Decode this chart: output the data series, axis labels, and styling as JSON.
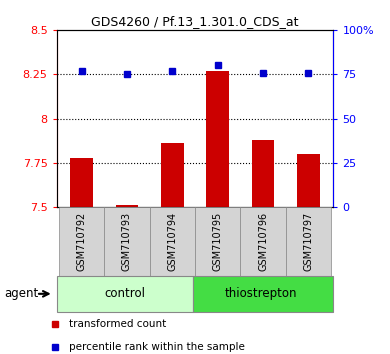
{
  "title": "GDS4260 / Pf.13_1.301.0_CDS_at",
  "samples": [
    "GSM710792",
    "GSM710793",
    "GSM710794",
    "GSM710795",
    "GSM710796",
    "GSM710797"
  ],
  "red_values": [
    7.78,
    7.51,
    7.86,
    8.27,
    7.88,
    7.8
  ],
  "blue_values": [
    77,
    75,
    77,
    80,
    76,
    76
  ],
  "ylim_left": [
    7.5,
    8.5
  ],
  "ylim_right": [
    0,
    100
  ],
  "yticks_left": [
    7.5,
    7.75,
    8.0,
    8.25,
    8.5
  ],
  "ytick_labels_left": [
    "7.5",
    "7.75",
    "8",
    "8.25",
    "8.5"
  ],
  "yticks_right": [
    0,
    25,
    50,
    75,
    100
  ],
  "ytick_labels_right": [
    "0",
    "25",
    "50",
    "75",
    "100%"
  ],
  "hlines": [
    7.75,
    8.0,
    8.25
  ],
  "control_label": "control",
  "thiostrepton_label": "thiostrepton",
  "agent_label": "agent",
  "legend_red": "transformed count",
  "legend_blue": "percentile rank within the sample",
  "bar_color": "#cc0000",
  "dot_color": "#0000cc",
  "control_color": "#ccffcc",
  "thiostrepton_color": "#44dd44",
  "sample_box_color": "#d4d4d4",
  "bg_color": "#ffffff",
  "bar_width": 0.5
}
